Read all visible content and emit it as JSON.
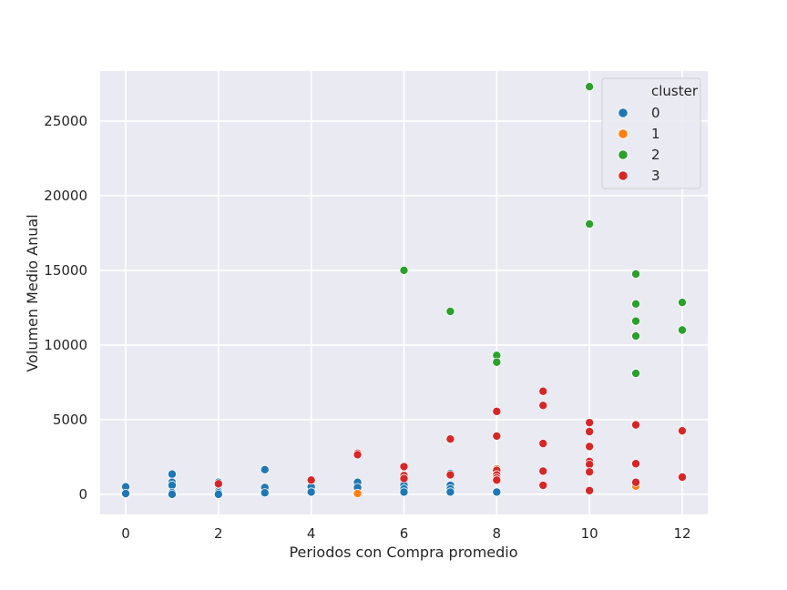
{
  "chart_data": {
    "type": "scatter",
    "title": "",
    "xlabel": "Periodos con Compra promedio",
    "ylabel": "Volumen Medio Anual",
    "xlim": [
      -0.55,
      12.55
    ],
    "ylim": [
      -1350,
      28350
    ],
    "xticks": [
      0,
      2,
      4,
      6,
      8,
      10,
      12
    ],
    "yticks": [
      0,
      5000,
      10000,
      15000,
      20000,
      25000
    ],
    "grid": true,
    "legend": {
      "title": "cluster",
      "position": "top-right"
    },
    "series": [
      {
        "name": "0",
        "color": "#1f77b4",
        "points": [
          [
            0,
            500
          ],
          [
            0,
            0
          ],
          [
            0,
            50
          ],
          [
            1,
            1350
          ],
          [
            1,
            800
          ],
          [
            1,
            600
          ],
          [
            1,
            100
          ],
          [
            1,
            0
          ],
          [
            2,
            800
          ],
          [
            2,
            600
          ],
          [
            2,
            200
          ],
          [
            2,
            100
          ],
          [
            2,
            0
          ],
          [
            3,
            1650
          ],
          [
            3,
            450
          ],
          [
            3,
            100
          ],
          [
            4,
            500
          ],
          [
            4,
            150
          ],
          [
            5,
            800
          ],
          [
            5,
            450
          ],
          [
            6,
            1150
          ],
          [
            6,
            900
          ],
          [
            6,
            600
          ],
          [
            6,
            350
          ],
          [
            6,
            150
          ],
          [
            7,
            1400
          ],
          [
            7,
            600
          ],
          [
            7,
            350
          ],
          [
            7,
            150
          ],
          [
            8,
            150
          ]
        ]
      },
      {
        "name": "1",
        "color": "#ff7f0e",
        "points": [
          [
            5,
            50
          ],
          [
            8,
            1700
          ],
          [
            11,
            550
          ]
        ]
      },
      {
        "name": "2",
        "color": "#2ca02c",
        "points": [
          [
            6,
            15000
          ],
          [
            7,
            12250
          ],
          [
            8,
            9300
          ],
          [
            8,
            8850
          ],
          [
            10,
            27300
          ],
          [
            10,
            18100
          ],
          [
            11,
            14750
          ],
          [
            11,
            12750
          ],
          [
            11,
            11600
          ],
          [
            11,
            10600
          ],
          [
            11,
            8100
          ],
          [
            12,
            12850
          ],
          [
            12,
            11000
          ]
        ]
      },
      {
        "name": "3",
        "color": "#d62728",
        "points": [
          [
            2,
            700
          ],
          [
            4,
            950
          ],
          [
            5,
            2750
          ],
          [
            5,
            2650
          ],
          [
            6,
            1850
          ],
          [
            6,
            1250
          ],
          [
            6,
            1050
          ],
          [
            7,
            3700
          ],
          [
            7,
            1300
          ],
          [
            8,
            5550
          ],
          [
            8,
            3900
          ],
          [
            8,
            1600
          ],
          [
            8,
            1300
          ],
          [
            8,
            1100
          ],
          [
            8,
            950
          ],
          [
            9,
            6900
          ],
          [
            9,
            5950
          ],
          [
            9,
            3400
          ],
          [
            9,
            1550
          ],
          [
            9,
            600
          ],
          [
            10,
            4800
          ],
          [
            10,
            4200
          ],
          [
            10,
            3200
          ],
          [
            10,
            2200
          ],
          [
            10,
            2000
          ],
          [
            10,
            1500
          ],
          [
            10,
            250
          ],
          [
            11,
            4650
          ],
          [
            11,
            2050
          ],
          [
            11,
            800
          ],
          [
            12,
            4250
          ],
          [
            12,
            1150
          ]
        ]
      }
    ]
  }
}
